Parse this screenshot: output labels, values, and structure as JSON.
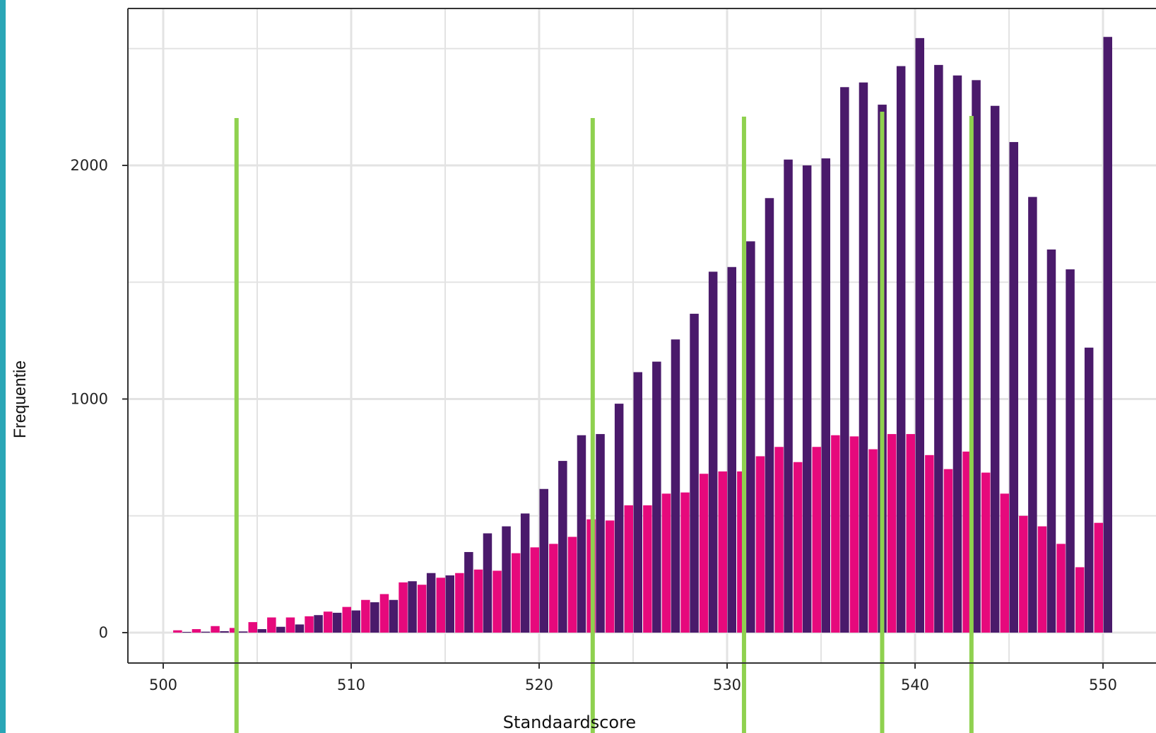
{
  "chart_data": {
    "type": "bar",
    "xlabel": "Standaardscore",
    "ylabel": "Frequentie",
    "xlim": [
      498,
      552
    ],
    "ylim": [
      -125,
      2670
    ],
    "x_ticks": [
      500,
      510,
      520,
      530,
      540,
      550
    ],
    "y_ticks": [
      0,
      1000,
      2000
    ],
    "grid": true,
    "legend": "none",
    "colors": {
      "series_magenta": "#e6097c",
      "series_purple": "#4a1a6b",
      "reference_lines": "#8fd14f",
      "left_edge": "#2aa6b6",
      "grid": "#e3e3e3",
      "axis": "#333333"
    },
    "x": [
      501,
      502,
      503,
      504,
      505,
      506,
      507,
      508,
      509,
      510,
      511,
      512,
      513,
      514,
      515,
      516,
      517,
      518,
      519,
      520,
      521,
      522,
      523,
      524,
      525,
      526,
      527,
      528,
      529,
      530,
      531,
      532,
      533,
      534,
      535,
      536,
      537,
      538,
      539,
      540,
      541,
      542,
      543,
      544,
      545,
      546,
      547,
      548,
      549,
      550
    ],
    "series": [
      {
        "values": [
          10,
          15,
          28,
          20,
          45,
          65,
          65,
          70,
          90,
          110,
          140,
          165,
          215,
          205,
          235,
          255,
          270,
          265,
          340,
          365,
          380,
          410,
          485,
          480,
          545,
          545,
          595,
          600,
          680,
          690,
          690,
          755,
          795,
          730,
          795,
          845,
          840,
          785,
          850,
          850,
          760,
          700,
          775,
          685,
          595,
          500,
          455,
          380,
          280,
          470
        ]
      },
      {
        "values": [
          3,
          4,
          6,
          5,
          15,
          25,
          35,
          75,
          85,
          95,
          130,
          140,
          220,
          255,
          245,
          345,
          425,
          455,
          510,
          615,
          735,
          845,
          850,
          980,
          1115,
          1160,
          1255,
          1365,
          1545,
          1565,
          1675,
          1860,
          2025,
          2000,
          2030,
          2335,
          2355,
          2260,
          2425,
          2545,
          2430,
          2385,
          2365,
          2255,
          2100,
          1865,
          1640,
          1555,
          1220,
          2550
        ]
      }
    ],
    "reference_lines_x": [
      503.9,
      522.85,
      530.9,
      538.25,
      543
    ]
  }
}
